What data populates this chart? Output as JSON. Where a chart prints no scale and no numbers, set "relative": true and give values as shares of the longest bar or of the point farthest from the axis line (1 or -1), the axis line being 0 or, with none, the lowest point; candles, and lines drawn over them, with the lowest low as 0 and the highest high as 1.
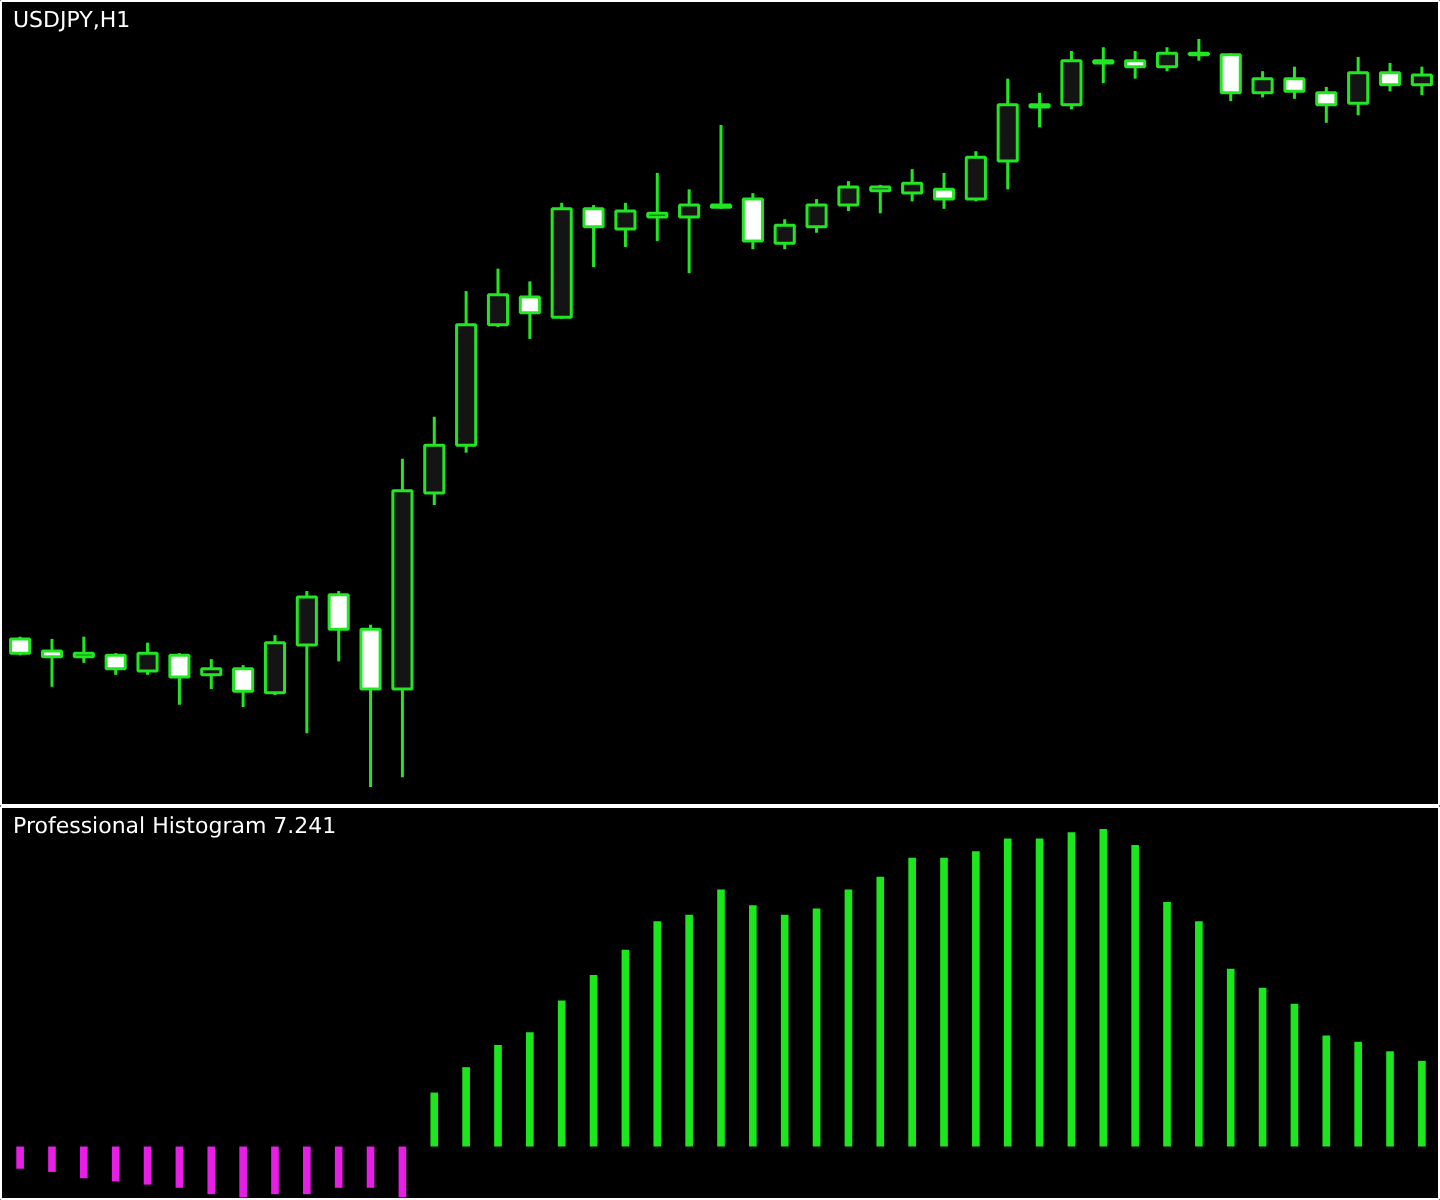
{
  "chart_data": [
    {
      "type": "candlestick",
      "title": "USDJPY,H1",
      "relative": true,
      "color": "#22e622",
      "categories": [
        null,
        null,
        null,
        null,
        null,
        null,
        null,
        null,
        null,
        null,
        null,
        null,
        null,
        null,
        null,
        null,
        null,
        null,
        null,
        null,
        null,
        null,
        null,
        null,
        null,
        null,
        null,
        null,
        null,
        null,
        null,
        null,
        null,
        null,
        null,
        null,
        null,
        null,
        null,
        null,
        null,
        null,
        null,
        null,
        null
      ],
      "ohlc": [
        [
          0.198,
          0.201,
          0.176,
          0.179
        ],
        [
          0.182,
          0.198,
          0.134,
          0.174
        ],
        [
          0.174,
          0.201,
          0.166,
          0.179
        ],
        [
          0.176,
          0.179,
          0.15,
          0.158
        ],
        [
          0.155,
          0.193,
          0.15,
          0.179
        ],
        [
          0.176,
          0.179,
          0.11,
          0.147
        ],
        [
          0.15,
          0.171,
          0.131,
          0.158
        ],
        [
          0.158,
          0.163,
          0.107,
          0.128
        ],
        [
          0.126,
          0.203,
          0.123,
          0.193
        ],
        [
          0.19,
          0.262,
          0.072,
          0.254
        ],
        [
          0.257,
          0.262,
          0.168,
          0.211
        ],
        [
          0.211,
          0.217,
          0,
          0.131
        ],
        [
          0.131,
          0.439,
          0.013,
          0.396
        ],
        [
          0.393,
          0.495,
          0.377,
          0.457
        ],
        [
          0.457,
          0.663,
          0.447,
          0.618
        ],
        [
          0.618,
          0.693,
          0.615,
          0.658
        ],
        [
          0.655,
          0.676,
          0.599,
          0.634
        ],
        [
          0.628,
          0.781,
          0.626,
          0.773
        ],
        [
          0.773,
          0.778,
          0.695,
          0.749
        ],
        [
          0.746,
          0.781,
          0.722,
          0.77
        ],
        [
          0.762,
          0.821,
          0.73,
          0.767
        ],
        [
          0.762,
          0.799,
          0.687,
          0.778
        ],
        [
          0.775,
          0.885,
          0.773,
          0.778
        ],
        [
          0.786,
          0.794,
          0.719,
          0.73
        ],
        [
          0.727,
          0.759,
          0.719,
          0.751
        ],
        [
          0.749,
          0.786,
          0.741,
          0.778
        ],
        [
          0.778,
          0.81,
          0.77,
          0.802
        ],
        [
          0.797,
          0.805,
          0.767,
          0.802
        ],
        [
          0.794,
          0.826,
          0.783,
          0.807
        ],
        [
          0.799,
          0.821,
          0.773,
          0.786
        ],
        [
          0.786,
          0.85,
          0.783,
          0.842
        ],
        [
          0.837,
          0.947,
          0.799,
          0.912
        ],
        [
          0.909,
          0.928,
          0.882,
          0.912
        ],
        [
          0.912,
          0.984,
          0.906,
          0.971
        ],
        [
          0.968,
          0.989,
          0.941,
          0.971
        ],
        [
          0.971,
          0.984,
          0.947,
          0.963
        ],
        [
          0.963,
          0.989,
          0.957,
          0.981
        ],
        [
          0.979,
          1,
          0.971,
          0.981
        ],
        [
          0.979,
          0.981,
          0.917,
          0.928
        ],
        [
          0.928,
          0.957,
          0.922,
          0.947
        ],
        [
          0.947,
          0.963,
          0.92,
          0.93
        ],
        [
          0.928,
          0.936,
          0.888,
          0.912
        ],
        [
          0.914,
          0.976,
          0.898,
          0.955
        ],
        [
          0.955,
          0.968,
          0.93,
          0.939
        ],
        [
          0.939,
          0.963,
          0.925,
          0.952
        ]
      ]
    },
    {
      "type": "bar",
      "title": "Professional Histogram 7.241",
      "relative": true,
      "categories": [
        null,
        null,
        null,
        null,
        null,
        null,
        null,
        null,
        null,
        null,
        null,
        null,
        null,
        null,
        null,
        null,
        null,
        null,
        null,
        null,
        null,
        null,
        null,
        null,
        null,
        null,
        null,
        null,
        null,
        null,
        null,
        null,
        null,
        null,
        null,
        null,
        null,
        null,
        null,
        null,
        null,
        null,
        null,
        null,
        null
      ],
      "values": [
        -0.07,
        -0.08,
        -0.1,
        -0.11,
        -0.12,
        -0.13,
        -0.15,
        -0.16,
        -0.15,
        -0.15,
        -0.13,
        -0.13,
        -0.16,
        0.17,
        0.25,
        0.32,
        0.36,
        0.46,
        0.54,
        0.62,
        0.71,
        0.73,
        0.81,
        0.76,
        0.73,
        0.75,
        0.81,
        0.85,
        0.91,
        0.91,
        0.93,
        0.97,
        0.97,
        0.99,
        1,
        0.95,
        0.77,
        0.71,
        0.56,
        0.5,
        0.45,
        0.35,
        0.33,
        0.3,
        0.27
      ],
      "colors": [
        "#e61ee6",
        "#e61ee6",
        "#e61ee6",
        "#e61ee6",
        "#e61ee6",
        "#e61ee6",
        "#e61ee6",
        "#e61ee6",
        "#e61ee6",
        "#e61ee6",
        "#e61ee6",
        "#e61ee6",
        "#e61ee6",
        "#1ee61e",
        "#1ee61e",
        "#1ee61e",
        "#1ee61e",
        "#1ee61e",
        "#1ee61e",
        "#1ee61e",
        "#1ee61e",
        "#1ee61e",
        "#1ee61e",
        "#1ee61e",
        "#1ee61e",
        "#1ee61e",
        "#1ee61e",
        "#1ee61e",
        "#1ee61e",
        "#1ee61e",
        "#1ee61e",
        "#1ee61e",
        "#1ee61e",
        "#1ee61e",
        "#1ee61e",
        "#1ee61e",
        "#1ee61e",
        "#1ee61e",
        "#1ee61e",
        "#1ee61e",
        "#1ee61e",
        "#1ee61e",
        "#1ee61e",
        "#1ee61e",
        "#1ee61e"
      ]
    }
  ]
}
